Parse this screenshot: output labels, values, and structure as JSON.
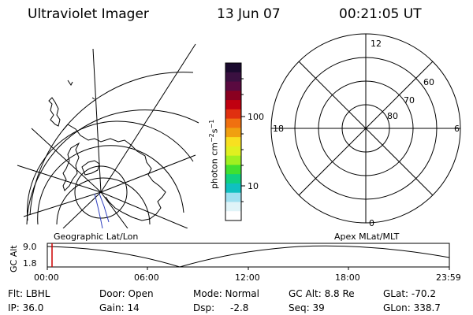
{
  "header": {
    "title": "Ultraviolet Imager",
    "date": "13 Jun 07",
    "time": "00:21:05 UT"
  },
  "left_map": {
    "label": "Geographic Lat/Lon"
  },
  "right_map": {
    "label": "Apex MLat/MLT",
    "mlt_labels": [
      "12",
      "6",
      "0",
      "18"
    ],
    "mlat_labels": [
      "60",
      "70",
      "80"
    ]
  },
  "colorbar": {
    "unit": "photon cm^-2 s^-1",
    "tick_labels": [
      "100",
      "10"
    ],
    "colors": [
      "#1a0a2e",
      "#3a1040",
      "#5a0a40",
      "#8a0020",
      "#c00010",
      "#e03010",
      "#f07010",
      "#f0a010",
      "#f8e020",
      "#e0f020",
      "#a0f020",
      "#40e030",
      "#10d080",
      "#10c0c0",
      "#a0e0f0",
      "#e0f4f8",
      "#ffffff"
    ]
  },
  "gc_alt_panel": {
    "ylabel": "GC Alt",
    "yticks": [
      "9.0",
      "1.8"
    ],
    "xticks": [
      "00:00",
      "06:00",
      "12:00",
      "18:00",
      "23:59"
    ],
    "current_marker_color": "#cc0000"
  },
  "info": {
    "filter": "Flt: LBHL",
    "ip": "IP: 36.0",
    "door": "Door: Open",
    "gain": "Gain: 14",
    "mode": "Mode: Normal",
    "dsp_label": "Dsp:",
    "dsp_value": "-2.8",
    "gc_alt": "GC Alt: 8.8 Re",
    "seq": "Seq: 39",
    "glat": "GLat: -70.2",
    "glon": "GLon: 338.7"
  }
}
